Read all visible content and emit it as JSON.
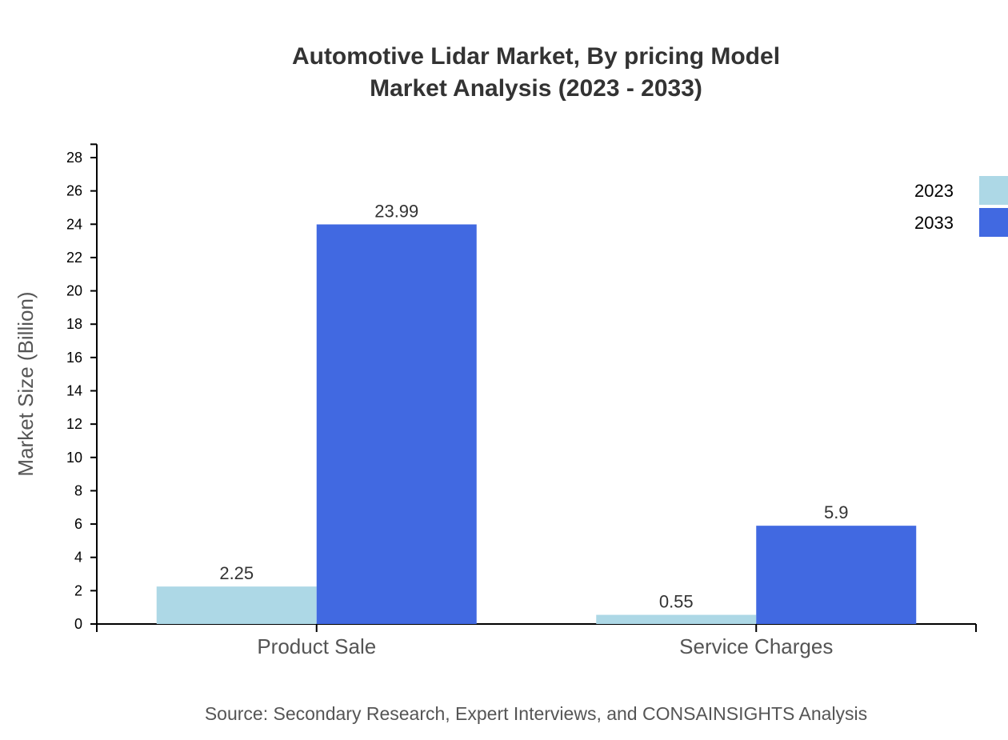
{
  "chart_data": {
    "type": "bar",
    "title": "Automotive Lidar Market, By pricing Model",
    "subtitle": "Market Analysis (2023 - 2033)",
    "xlabel": "",
    "ylabel": "Market Size (Billion)",
    "categories": [
      "Product Sale",
      "Service Charges"
    ],
    "series": [
      {
        "name": "2023",
        "color": "#add8e6",
        "values": [
          2.25,
          0.55
        ]
      },
      {
        "name": "2033",
        "color": "#4169e1",
        "values": [
          23.99,
          5.9
        ]
      }
    ],
    "ylim": [
      0,
      28.8
    ],
    "yticks": [
      0,
      2,
      4,
      6,
      8,
      10,
      12,
      14,
      16,
      18,
      20,
      22,
      24,
      26,
      28
    ],
    "grid": false,
    "legend": "top-right",
    "source": "Source: Secondary Research, Expert Interviews, and CONSAINSIGHTS Analysis"
  }
}
